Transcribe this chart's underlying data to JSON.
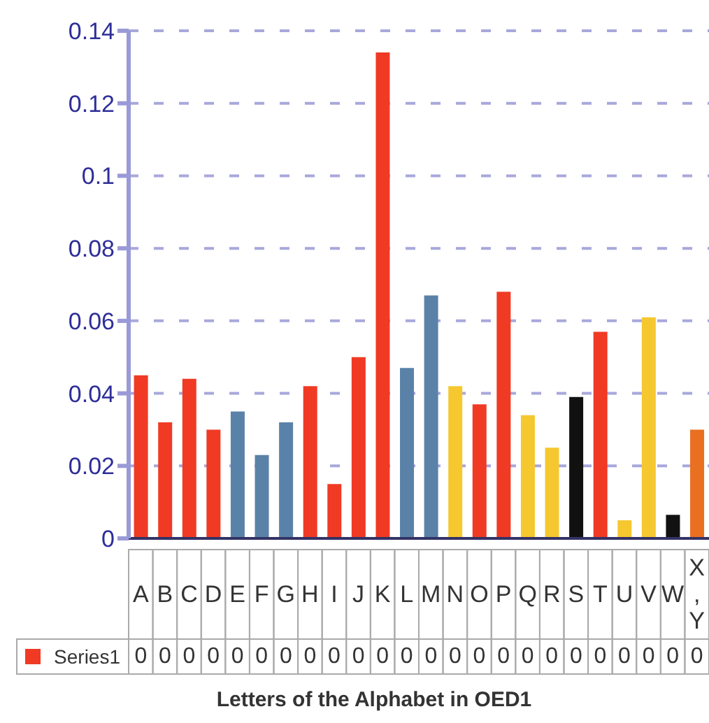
{
  "chart_data": {
    "type": "bar",
    "xlabel": "Letters of the Alphabet in OED1",
    "categories": [
      "A",
      "B",
      "C",
      "D",
      "E",
      "F",
      "G",
      "H",
      "I",
      "J",
      "K",
      "L",
      "M",
      "N",
      "O",
      "P",
      "Q",
      "R",
      "S",
      "T",
      "U",
      "V",
      "W",
      "X, Y"
    ],
    "series": [
      {
        "name": "Series1",
        "color": "#f03a24",
        "colors": [
          "#f03a24",
          "#f03a24",
          "#f03a24",
          "#f03a24",
          "#5a82a8",
          "#5a82a8",
          "#5a82a8",
          "#f03a24",
          "#f03a24",
          "#f03a24",
          "#f03a24",
          "#5a82a8",
          "#5a82a8",
          "#f5c830",
          "#f03a24",
          "#f03a24",
          "#f5c830",
          "#f5c830",
          "#111111",
          "#f03a24",
          "#f5c830",
          "#f5c830",
          "#111111",
          "#e87020"
        ],
        "values": [
          0.045,
          0.032,
          0.044,
          0.03,
          0.035,
          0.023,
          0.032,
          0.042,
          0.015,
          0.05,
          0.134,
          0.047,
          0.067,
          0.042,
          0.037,
          0.068,
          0.034,
          0.025,
          0.039,
          0.057,
          0.005,
          0.061,
          0.0065,
          0.03
        ],
        "value_labels": [
          "0",
          "0",
          "0",
          "0",
          "0",
          "0",
          "0",
          "0",
          "0",
          "0",
          "0",
          "0",
          "0",
          "0",
          "0",
          "0",
          "0",
          "0",
          "0",
          "0",
          "0",
          "0",
          "0",
          "0"
        ]
      }
    ],
    "ylim": [
      0,
      0.14
    ],
    "yticks": [
      0,
      0.02,
      0.04,
      0.06,
      0.08,
      0.1,
      0.12,
      0.14
    ],
    "grid": "y",
    "legend": "bottom"
  }
}
